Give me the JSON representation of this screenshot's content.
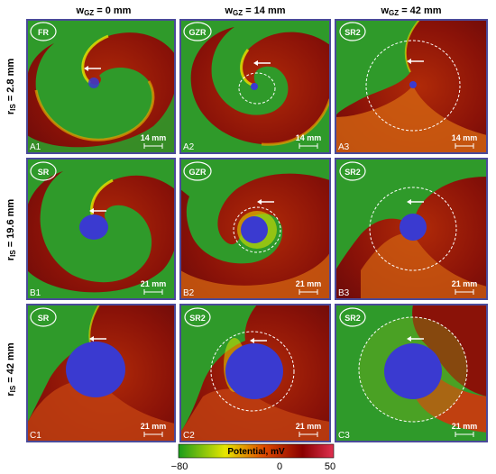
{
  "column_headers": [
    {
      "var": "w",
      "sub": "GZ",
      "rest": " = 0 mm"
    },
    {
      "var": "w",
      "sub": "GZ",
      "rest": " = 14 mm"
    },
    {
      "var": "w",
      "sub": "GZ",
      "rest": " = 42 mm"
    }
  ],
  "row_headers": [
    {
      "var": "r",
      "sub": "IS",
      "rest": " = 2.8 mm"
    },
    {
      "var": "r",
      "sub": "IS",
      "rest": " = 19.6 mm"
    },
    {
      "var": "r",
      "sub": "IS",
      "rest": " = 42 mm"
    }
  ],
  "panels": [
    {
      "id": "A1",
      "badge": "FR",
      "scale": "14 mm"
    },
    {
      "id": "A2",
      "badge": "GZR",
      "scale": "14 mm"
    },
    {
      "id": "A3",
      "badge": "SR2",
      "scale": "14 mm"
    },
    {
      "id": "B1",
      "badge": "SR",
      "scale": "21 mm"
    },
    {
      "id": "B2",
      "badge": "GZR",
      "scale": "21 mm"
    },
    {
      "id": "B3",
      "badge": "SR2",
      "scale": "21 mm"
    },
    {
      "id": "C1",
      "badge": "SR",
      "scale": "21 mm"
    },
    {
      "id": "C2",
      "badge": "SR2",
      "scale": "21 mm"
    },
    {
      "id": "C3",
      "badge": "SR2",
      "scale": "21 mm"
    }
  ],
  "colorbar": {
    "label": "Potential, mV",
    "ticks": [
      "−80",
      "0",
      "50"
    ],
    "colors": [
      "#1a9c1a",
      "#e6e600",
      "#e04a00",
      "#8a0000",
      "#e03050"
    ]
  },
  "colors": {
    "green": "#2f9a2a",
    "dark_red": "#7a0c0c",
    "blue": "#3a3ad0",
    "panel_border": "#4a4a9a"
  }
}
